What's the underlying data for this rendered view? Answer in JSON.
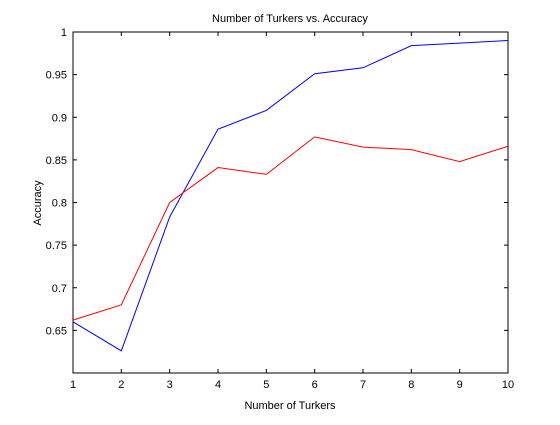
{
  "chart_data": {
    "type": "line",
    "title": "Number of Turkers vs. Accuracy",
    "xlabel": "Number of Turkers",
    "ylabel": "Accuracy",
    "xlim": [
      1,
      10
    ],
    "ylim": [
      0.6,
      1.0
    ],
    "xticks": [
      "1",
      "2",
      "3",
      "4",
      "5",
      "6",
      "7",
      "8",
      "9",
      "10"
    ],
    "yticks": [
      "0.65",
      "0.7",
      "0.75",
      "0.8",
      "0.85",
      "0.9",
      "0.95",
      "1"
    ],
    "grid": false,
    "x": [
      1,
      2,
      3,
      4,
      5,
      6,
      7,
      8,
      9,
      10
    ],
    "series": [
      {
        "color": "#0000ff",
        "values": [
          0.66,
          0.626,
          0.783,
          0.886,
          0.908,
          0.951,
          0.958,
          0.984,
          0.987,
          0.99
        ]
      },
      {
        "color": "#ff0000",
        "values": [
          0.662,
          0.68,
          0.8,
          0.841,
          0.833,
          0.877,
          0.865,
          0.862,
          0.848,
          0.866
        ]
      }
    ]
  }
}
